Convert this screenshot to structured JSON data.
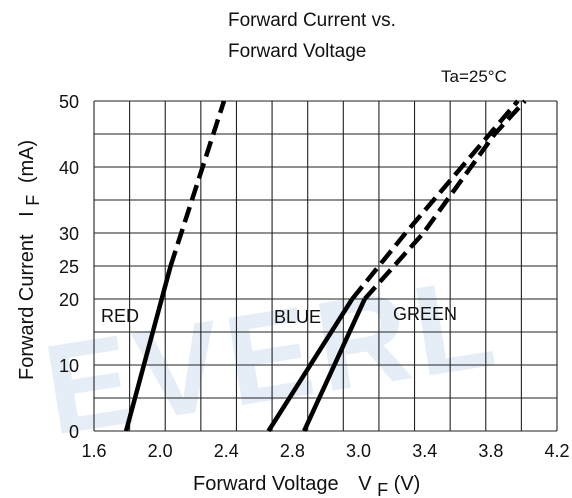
{
  "chart_data": {
    "type": "line",
    "title_lines": [
      "Forward Current vs.",
      "Forward Voltage"
    ],
    "annotation": "Ta=25°C",
    "xlabel": {
      "main": "Forward Voltage",
      "symbol": "V",
      "subscript": "F",
      "unit": "(V)"
    },
    "ylabel": {
      "main": "Forward Current",
      "symbol": "I",
      "subscript": "F",
      "unit": "(mA)"
    },
    "xlim": [
      1.6,
      4.2
    ],
    "x_ticks": [
      "1.6",
      "2.0",
      "2.4",
      "2.8",
      "3.0",
      "3.4",
      "3.8",
      "4.2"
    ],
    "y_ticks": [
      {
        "label": "0",
        "value": 0
      },
      {
        "label": "10",
        "value": 10
      },
      {
        "label": "20",
        "value": 20
      },
      {
        "label": "25",
        "value": 25
      },
      {
        "label": "30",
        "value": 30
      },
      {
        "label": "40",
        "value": 40
      },
      {
        "label": "50",
        "value": 50
      }
    ],
    "grid": true,
    "series": [
      {
        "name": "RED",
        "solid": [
          [
            1.78,
            0
          ],
          [
            2.03,
            25
          ]
        ],
        "dashed": [
          [
            2.03,
            25
          ],
          [
            2.33,
            50
          ]
        ]
      },
      {
        "name": "BLUE",
        "solid": [
          [
            2.58,
            0
          ],
          [
            3.05,
            20
          ]
        ],
        "dashed": [
          [
            3.05,
            20
          ],
          [
            3.35,
            30
          ],
          [
            3.98,
            50
          ]
        ]
      },
      {
        "name": "GREEN",
        "solid": [
          [
            2.78,
            0
          ],
          [
            3.12,
            20
          ]
        ],
        "dashed": [
          [
            3.12,
            20
          ],
          [
            3.45,
            30
          ],
          [
            3.85,
            45
          ],
          [
            4.02,
            50
          ]
        ]
      }
    ],
    "watermark": "EVERL"
  }
}
